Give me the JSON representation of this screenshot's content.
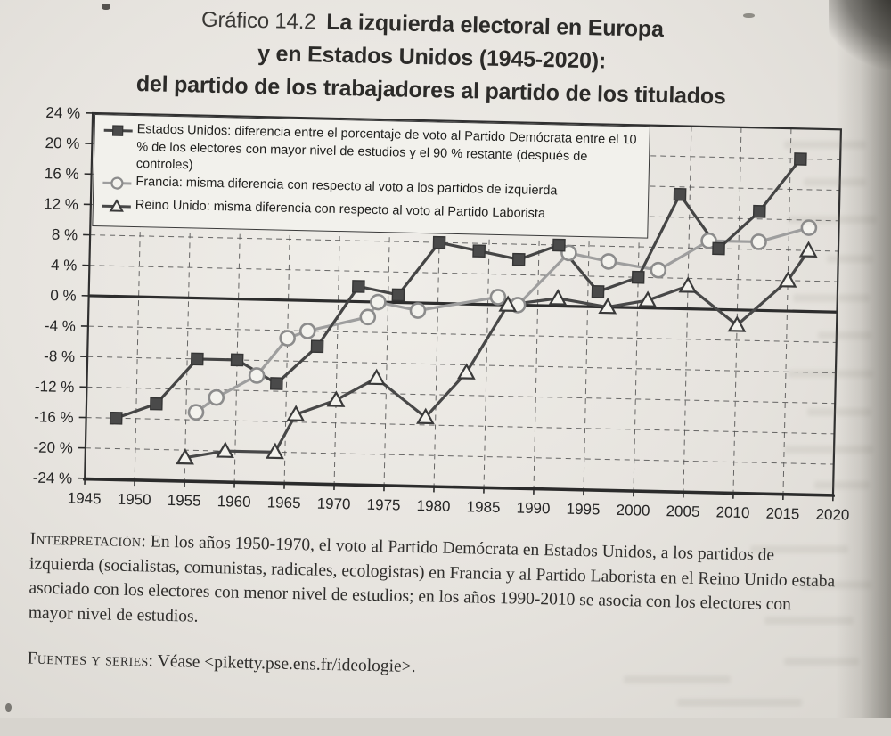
{
  "page": {
    "figure_label": "Gráfico 14.2",
    "title_line1": "La izquierda electoral en Europa",
    "title_line2": "y en Estados Unidos (1945-2020):",
    "title_line3": "del partido de los trabajadores al partido de los titulados"
  },
  "chart_data": {
    "type": "line",
    "title": "La izquierda electoral en Europa y en Estados Unidos (1945-2020): del partido de los trabajadores al partido de los titulados",
    "grid": "dashed",
    "zero_line": true,
    "legend_position": "top-left",
    "x_axis": {
      "min": 1945,
      "max": 2020,
      "tick_step": 5,
      "tick_labels": [
        "1945",
        "1950",
        "1955",
        "1960",
        "1965",
        "1970",
        "1975",
        "1980",
        "1985",
        "1990",
        "1995",
        "2000",
        "2005",
        "2010",
        "2015",
        "2020"
      ]
    },
    "y_axis": {
      "min": -24,
      "max": 24,
      "tick_step": 4,
      "unit": "%",
      "tick_labels": [
        "24 %",
        "20 %",
        "16 %",
        "12 %",
        "8 %",
        "4 %",
        "0 %",
        "-4 %",
        "-8 %",
        "-12 %",
        "-16 %",
        "-20 %",
        "-24 %"
      ]
    },
    "series": [
      {
        "name": "estados-unidos",
        "label": "Estados Unidos: diferencia entre el porcentaje de voto al Partido Demócrata entre el 10 % de los electores con mayor nivel de estudios y el 90 % restante (después de controles)",
        "marker": "square-filled",
        "line_color": "#454545",
        "marker_fill": "#4a4a4a",
        "marker_stroke": "#353535",
        "points": [
          [
            1948,
            -16
          ],
          [
            1952,
            -14
          ],
          [
            1956,
            -8
          ],
          [
            1960,
            -8
          ],
          [
            1964,
            -11
          ],
          [
            1968,
            -6
          ],
          [
            1972,
            2
          ],
          [
            1976,
            1
          ],
          [
            1980,
            8
          ],
          [
            1984,
            7
          ],
          [
            1988,
            6
          ],
          [
            1992,
            8
          ],
          [
            1996,
            2
          ],
          [
            2000,
            4
          ],
          [
            2004,
            15
          ],
          [
            2008,
            8
          ],
          [
            2012,
            13
          ],
          [
            2016,
            20
          ]
        ]
      },
      {
        "name": "francia",
        "label": "Francia: misma diferencia con respecto al voto a los partidos de izquierda",
        "marker": "circle-open",
        "line_color": "#9e9e9e",
        "marker_fill": "#f3f2ed",
        "marker_stroke": "#8c8c8c",
        "points": [
          [
            1956,
            -15
          ],
          [
            1958,
            -13
          ],
          [
            1962,
            -10
          ],
          [
            1965,
            -5
          ],
          [
            1967,
            -4
          ],
          [
            1973,
            -2
          ],
          [
            1974,
            0
          ],
          [
            1978,
            -1
          ],
          [
            1986,
            1
          ],
          [
            1988,
            0
          ],
          [
            1993,
            7
          ],
          [
            1997,
            6
          ],
          [
            2002,
            5
          ],
          [
            2007,
            9
          ],
          [
            2012,
            9
          ],
          [
            2017,
            11
          ]
        ]
      },
      {
        "name": "reino-unido",
        "label": "Reino Unido: misma diferencia con respecto al voto al Partido Laborista",
        "marker": "triangle-open",
        "line_color": "#484848",
        "marker_fill": "#f3f2ed",
        "marker_stroke": "#3a3a3a",
        "points": [
          [
            1955,
            -21
          ],
          [
            1959,
            -20
          ],
          [
            1964,
            -20
          ],
          [
            1966,
            -15
          ],
          [
            1970,
            -13
          ],
          [
            1974,
            -10
          ],
          [
            1979,
            -15
          ],
          [
            1983,
            -9
          ],
          [
            1987,
            0
          ],
          [
            1992,
            1
          ],
          [
            1997,
            0
          ],
          [
            2001,
            1
          ],
          [
            2005,
            3
          ],
          [
            2010,
            -2
          ],
          [
            2015,
            4
          ],
          [
            2017,
            8
          ]
        ]
      }
    ]
  },
  "interpretation": {
    "label": "Interpretación:",
    "text": " En los años 1950-1970, el voto al Partido Demócrata en Estados Unidos, a los partidos de izquierda (socialistas, comunistas, radicales, ecologistas) en Francia y al Partido Laborista en el Reino Unido estaba asociado con los electores con menor nivel de estudios; en los años 1990-2010 se asocia con los electores con mayor nivel de estudios."
  },
  "sources": {
    "label": "Fuentes y series:",
    "text": " Véase <piketty.pse.ens.fr/ideologie>."
  }
}
